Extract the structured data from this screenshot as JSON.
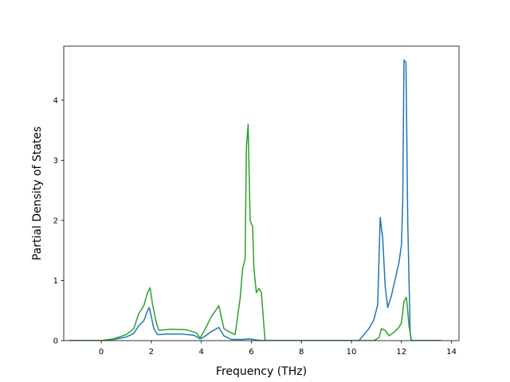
{
  "chart_data": {
    "type": "line",
    "title": "",
    "xlabel": "Frequency (THz)",
    "ylabel": "Partial Density of States",
    "xlim": [
      -1.5,
      14.3
    ],
    "ylim": [
      0,
      4.9
    ],
    "xticks": [
      0,
      2,
      4,
      6,
      8,
      10,
      12,
      14
    ],
    "xtick_labels": [
      "0",
      "2",
      "4",
      "6",
      "8",
      "10",
      "12",
      "14"
    ],
    "yticks": [
      0,
      1,
      2,
      3,
      4
    ],
    "ytick_labels": [
      "0",
      "1",
      "2",
      "3",
      "4"
    ],
    "grid": false,
    "legend": null,
    "series": [
      {
        "color": "#1f77b4",
        "points": [
          [
            -1.3,
            0
          ],
          [
            0,
            0
          ],
          [
            0.5,
            0.02
          ],
          [
            1.0,
            0.06
          ],
          [
            1.3,
            0.12
          ],
          [
            1.5,
            0.25
          ],
          [
            1.7,
            0.33
          ],
          [
            1.85,
            0.5
          ],
          [
            1.92,
            0.55
          ],
          [
            2.0,
            0.4
          ],
          [
            2.1,
            0.2
          ],
          [
            2.25,
            0.1
          ],
          [
            2.6,
            0.11
          ],
          [
            3.2,
            0.11
          ],
          [
            3.7,
            0.09
          ],
          [
            3.95,
            0.03
          ],
          [
            4.1,
            0.06
          ],
          [
            4.4,
            0.15
          ],
          [
            4.7,
            0.22
          ],
          [
            4.9,
            0.08
          ],
          [
            5.2,
            0.02
          ],
          [
            5.7,
            0.02
          ],
          [
            5.9,
            0.03
          ],
          [
            6.2,
            0.01
          ],
          [
            6.5,
            0
          ],
          [
            10.3,
            0
          ],
          [
            10.5,
            0.1
          ],
          [
            10.7,
            0.2
          ],
          [
            10.9,
            0.35
          ],
          [
            11.05,
            0.6
          ],
          [
            11.15,
            2.05
          ],
          [
            11.25,
            1.7
          ],
          [
            11.35,
            0.9
          ],
          [
            11.45,
            0.55
          ],
          [
            11.6,
            0.75
          ],
          [
            11.9,
            1.3
          ],
          [
            12.0,
            1.6
          ],
          [
            12.05,
            2.3
          ],
          [
            12.1,
            4.67
          ],
          [
            12.18,
            4.63
          ],
          [
            12.25,
            2.0
          ],
          [
            12.35,
            0.1
          ],
          [
            12.4,
            0
          ],
          [
            13.6,
            0
          ]
        ]
      },
      {
        "color": "#2ca02c",
        "points": [
          [
            -1.3,
            0
          ],
          [
            0,
            0
          ],
          [
            0.5,
            0.03
          ],
          [
            1.0,
            0.1
          ],
          [
            1.3,
            0.2
          ],
          [
            1.5,
            0.45
          ],
          [
            1.7,
            0.58
          ],
          [
            1.85,
            0.8
          ],
          [
            1.95,
            0.88
          ],
          [
            2.05,
            0.6
          ],
          [
            2.2,
            0.3
          ],
          [
            2.3,
            0.17
          ],
          [
            2.8,
            0.19
          ],
          [
            3.4,
            0.18
          ],
          [
            3.8,
            0.13
          ],
          [
            3.95,
            0.04
          ],
          [
            4.1,
            0.15
          ],
          [
            4.4,
            0.4
          ],
          [
            4.7,
            0.58
          ],
          [
            4.9,
            0.2
          ],
          [
            5.1,
            0.15
          ],
          [
            5.35,
            0.1
          ],
          [
            5.55,
            0.7
          ],
          [
            5.65,
            1.2
          ],
          [
            5.75,
            1.35
          ],
          [
            5.8,
            3.2
          ],
          [
            5.87,
            3.6
          ],
          [
            5.95,
            2.0
          ],
          [
            6.05,
            1.9
          ],
          [
            6.1,
            1.2
          ],
          [
            6.2,
            0.8
          ],
          [
            6.3,
            0.87
          ],
          [
            6.4,
            0.8
          ],
          [
            6.5,
            0.25
          ],
          [
            6.55,
            0
          ],
          [
            10.9,
            0
          ],
          [
            11.1,
            0.05
          ],
          [
            11.2,
            0.2
          ],
          [
            11.35,
            0.17
          ],
          [
            11.5,
            0.08
          ],
          [
            11.7,
            0.14
          ],
          [
            11.9,
            0.22
          ],
          [
            12.0,
            0.3
          ],
          [
            12.1,
            0.65
          ],
          [
            12.2,
            0.72
          ],
          [
            12.3,
            0.25
          ],
          [
            12.4,
            0
          ],
          [
            13.6,
            0
          ]
        ]
      }
    ]
  }
}
